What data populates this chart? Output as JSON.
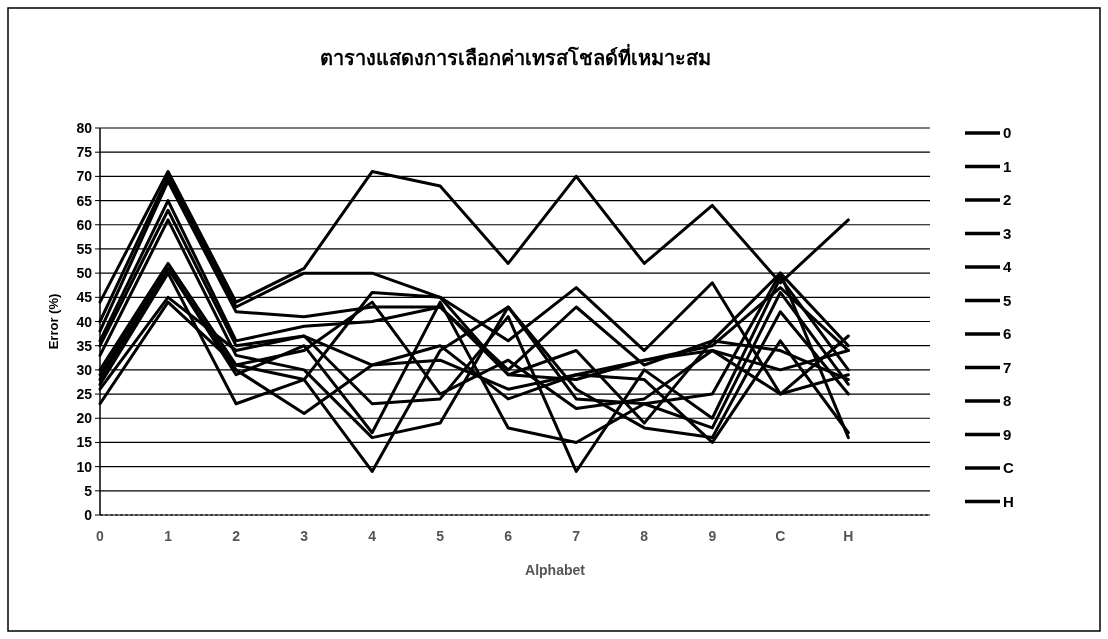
{
  "chart_data": {
    "type": "line",
    "title": "ตารางแสดงการเลือกค่าเทรสโชลด์ที่เหมาะสม",
    "xlabel": "Alphabet",
    "ylabel": "Error (%)",
    "categories": [
      "0",
      "1",
      "2",
      "3",
      "4",
      "5",
      "6",
      "7",
      "8",
      "9",
      "C",
      "H"
    ],
    "ylim": [
      0,
      80
    ],
    "yticks": [
      0,
      5,
      10,
      15,
      20,
      25,
      30,
      35,
      40,
      45,
      50,
      55,
      60,
      65,
      70,
      75,
      80
    ],
    "grid": "y",
    "legend": "right",
    "marker": "none",
    "line_style": "solid",
    "series": [
      {
        "name": "0",
        "color": "#000000",
        "values": [
          44,
          71,
          44,
          51,
          71,
          68,
          52,
          70,
          52,
          64,
          48,
          61
        ]
      },
      {
        "name": "1",
        "color": "#000000",
        "values": [
          40,
          70,
          43,
          50,
          50,
          45,
          36,
          47,
          34,
          48,
          25,
          37
        ]
      },
      {
        "name": "2",
        "color": "#000000",
        "values": [
          38,
          69,
          42,
          41,
          43,
          43,
          30,
          43,
          31,
          36,
          50,
          35
        ]
      },
      {
        "name": "3",
        "color": "#000000",
        "values": [
          36,
          65,
          36,
          39,
          40,
          43,
          29,
          28,
          32,
          35,
          47,
          34
        ]
      },
      {
        "name": "4",
        "color": "#000000",
        "values": [
          35,
          63,
          35,
          37,
          23,
          24,
          41,
          9,
          30,
          20,
          49,
          30
        ]
      },
      {
        "name": "5",
        "color": "#000000",
        "values": [
          33,
          61,
          33,
          30,
          16,
          19,
          43,
          24,
          23,
          18,
          46,
          27
        ]
      },
      {
        "name": "6",
        "color": "#000000",
        "values": [
          30,
          52,
          31,
          28,
          9,
          34,
          43,
          26,
          18,
          16,
          42,
          25
        ]
      },
      {
        "name": "7",
        "color": "#000000",
        "values": [
          29,
          51,
          30,
          21,
          31,
          32,
          26,
          29,
          28,
          15,
          36,
          17
        ]
      },
      {
        "name": "8",
        "color": "#000000",
        "values": [
          28,
          51,
          29,
          35,
          17,
          44,
          18,
          15,
          23,
          25,
          50,
          16
        ]
      },
      {
        "name": "9",
        "color": "#000000",
        "values": [
          27,
          50,
          23,
          28,
          46,
          45,
          29,
          34,
          19,
          36,
          34,
          28
        ]
      },
      {
        "name": "C",
        "color": "#000000",
        "values": [
          26,
          45,
          34,
          37,
          31,
          35,
          24,
          29,
          32,
          34,
          30,
          34
        ]
      },
      {
        "name": "H",
        "color": "#000000",
        "values": [
          23,
          44,
          31,
          34,
          44,
          25,
          32,
          22,
          24,
          34,
          25,
          29
        ]
      }
    ]
  }
}
